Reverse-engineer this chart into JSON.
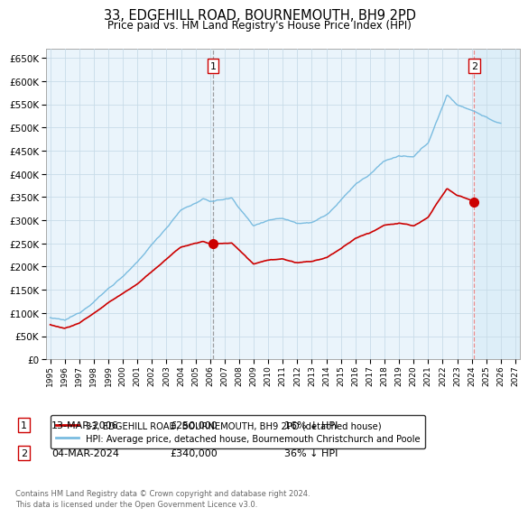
{
  "title": "33, EDGEHILL ROAD, BOURNEMOUTH, BH9 2PD",
  "subtitle": "Price paid vs. HM Land Registry's House Price Index (HPI)",
  "ytick_values": [
    0,
    50000,
    100000,
    150000,
    200000,
    250000,
    300000,
    350000,
    400000,
    450000,
    500000,
    550000,
    600000,
    650000
  ],
  "ylim": [
    0,
    670000
  ],
  "hpi_color": "#7abce0",
  "price_color": "#cc0000",
  "background_color": "#eaf4fb",
  "grid_color": "#c8dce8",
  "transaction1": {
    "date": "13-MAR-2006",
    "price": 250000,
    "label": "1",
    "pct": "16% ↓ HPI",
    "year": 2006.2
  },
  "transaction2": {
    "date": "04-MAR-2024",
    "price": 340000,
    "label": "2",
    "pct": "36% ↓ HPI",
    "year": 2024.17
  },
  "legend_property": "33, EDGEHILL ROAD, BOURNEMOUTH, BH9 2PD (detached house)",
  "legend_hpi": "HPI: Average price, detached house, Bournemouth Christchurch and Poole",
  "footer": "Contains HM Land Registry data © Crown copyright and database right 2024.\nThis data is licensed under the Open Government Licence v3.0.",
  "xlim_start": 1994.7,
  "xlim_end": 2027.3
}
